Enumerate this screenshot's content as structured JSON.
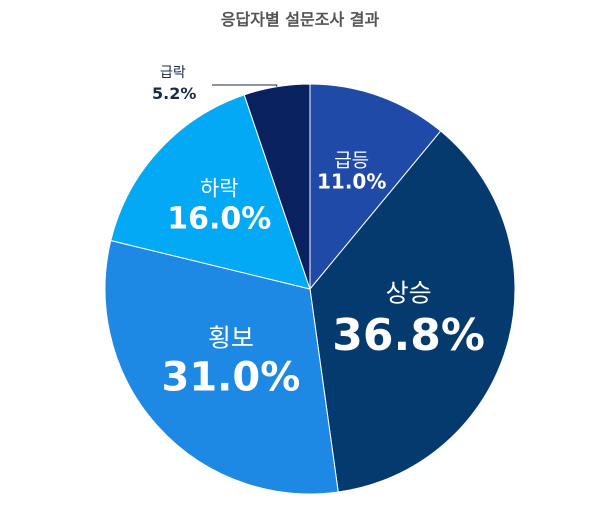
{
  "chart_data": {
    "type": "pie",
    "title": "응답자별 설문조사 결과",
    "categories": [
      "급등",
      "상승",
      "횡보",
      "하락",
      "급락"
    ],
    "values": [
      11.0,
      36.8,
      31.0,
      16.0,
      5.2
    ],
    "value_labels": [
      "11.0%",
      "36.8%",
      "31.0%",
      "16.0%",
      "5.2%"
    ],
    "colors": [
      "#1f4aa8",
      "#053a6e",
      "#1e88e5",
      "#03a9f4",
      "#0a2160"
    ],
    "start_angle_deg": 0,
    "direction": "clockwise",
    "legend": "none"
  }
}
